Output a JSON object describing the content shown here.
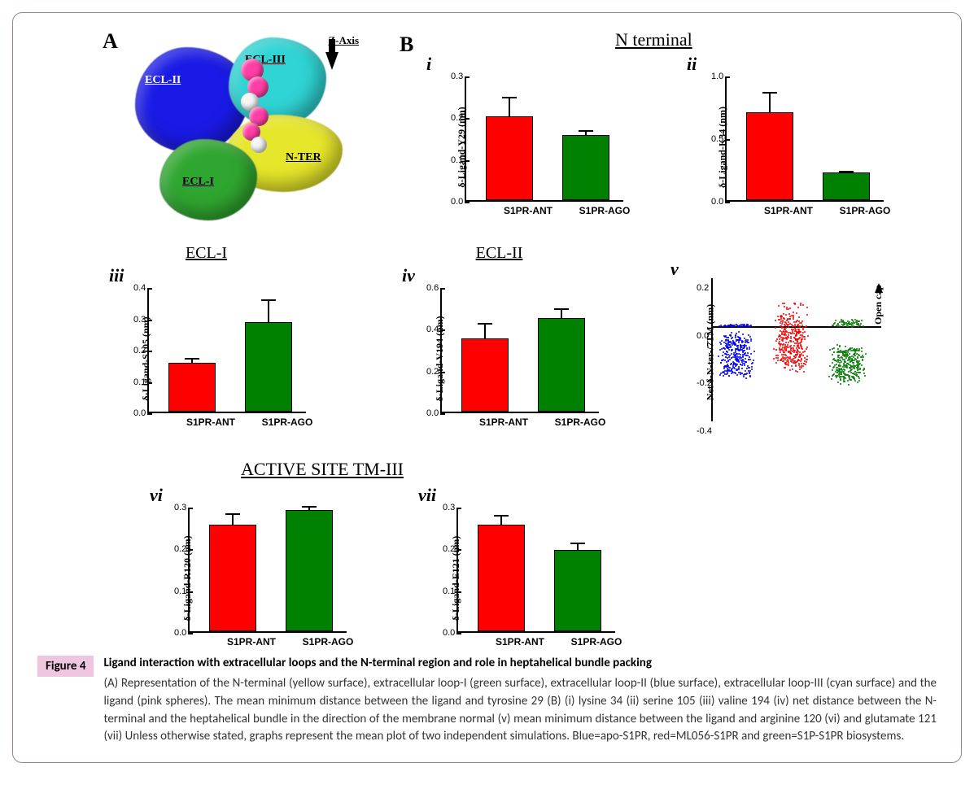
{
  "figure_tag": "Figure 4",
  "caption_title": "Ligand interaction with extracellular loops and the N-terminal region and role in heptahelical bundle packing",
  "caption_body_prefix": "(A) Representation of the N-terminal (yellow surface), extracellular loop-I (green surface), extracellular loop-II (blue surface), extracellular loop-III (cyan surface) and the ligand (pink spheres). The mean minimum distance between the ligand and tyrosine 29 (B) (i) lysine 34 (ii) serine 105 (iii) valine 194 (iv) net distance between the N-terminal and the heptahelical bundle in the direction of the membrane normal (v) mean minimum distance between the ligand and arginine 120 (vi) and glutamate 121 (vii) Unless otherwise stated, graphs represent the mean plot of two independent simulations. Blue=apo-S1PR, red=ML056-S1PR and green=S1P-S1PR biosystems.",
  "panelA": {
    "label": "A",
    "zaxis_label": "Z-Axis",
    "regions": {
      "ecl1": {
        "label": "ECL-I",
        "color": "#2fa62f"
      },
      "ecl2": {
        "label": "ECL-II",
        "color": "#1a1ae6"
      },
      "ecl3": {
        "label": "ECL-III",
        "color": "#2fd4d4"
      },
      "nter": {
        "label": "N-TER",
        "color": "#e6e62a"
      }
    },
    "ligand_color_primary": "#ff3fa6",
    "ligand_color_light": "#f5f5f5"
  },
  "panelB_label": "B",
  "colors": {
    "ant": "#ff0000",
    "ago": "#008000",
    "apo": "#0000ff",
    "axis": "#000000",
    "bg": "#ffffff"
  },
  "x_labels": {
    "ant": "S1PR-ANT",
    "ago": "S1PR-AGO"
  },
  "sections": {
    "nterminal": "N terminal",
    "ecl1": "ECL-I",
    "ecl2": "ECL-II",
    "active": "ACTIVE SITE TM-III"
  },
  "charts": {
    "i": {
      "roman": "i",
      "ylabel": "δ-Ligand-Y29 (nm)",
      "ymax": 0.3,
      "ystep": 0.1,
      "ant": {
        "val": 0.2,
        "err": 0.05
      },
      "ago": {
        "val": 0.155,
        "err": 0.015
      }
    },
    "ii": {
      "roman": "ii",
      "ylabel": "δ-Ligand-K34 (nm)",
      "ymax": 1.0,
      "ystep": 0.5,
      "ant": {
        "val": 0.7,
        "err": 0.17
      },
      "ago": {
        "val": 0.22,
        "err": 0.02
      }
    },
    "iii": {
      "roman": "iii",
      "ylabel": "δ-Ligand-S105 (nm)",
      "ymax": 0.4,
      "ystep": 0.1,
      "ant": {
        "val": 0.155,
        "err": 0.018
      },
      "ago": {
        "val": 0.285,
        "err": 0.075
      }
    },
    "iv": {
      "roman": "iv",
      "ylabel": "δ-Ligand-V194 (nm)",
      "ymax": 0.6,
      "ystep": 0.2,
      "ant": {
        "val": 0.35,
        "err": 0.08
      },
      "ago": {
        "val": 0.45,
        "err": 0.05
      }
    },
    "vi": {
      "roman": "vi",
      "ylabel": "δ-Ligand-R120 (nm)",
      "ymax": 0.3,
      "ystep": 0.1,
      "ant": {
        "val": 0.255,
        "err": 0.03
      },
      "ago": {
        "val": 0.29,
        "err": 0.012
      }
    },
    "vii": {
      "roman": "vii",
      "ylabel": "δ-Ligand-E121 (nm)",
      "ymax": 0.3,
      "ystep": 0.1,
      "ant": {
        "val": 0.255,
        "err": 0.025
      },
      "ago": {
        "val": 0.195,
        "err": 0.02
      }
    }
  },
  "scatter_v": {
    "roman": "v",
    "ylabel": "Net δ-N-ter-/7TM (nm)",
    "ymin": -0.4,
    "ymax": 0.2,
    "ystep": 0.2,
    "opencap_label": "Open cap",
    "clouds": {
      "apo": {
        "color": "#0000ff",
        "center": -0.12,
        "spread": 0.1,
        "up": 0.01
      },
      "ant": {
        "color": "#ff0000",
        "center": -0.07,
        "spread": 0.13,
        "up": 0.1
      },
      "ago": {
        "color": "#008000",
        "center": -0.16,
        "spread": 0.09,
        "up": 0.03
      }
    }
  },
  "fonts": {
    "serif": "Times New Roman",
    "sans": "Calibri"
  }
}
